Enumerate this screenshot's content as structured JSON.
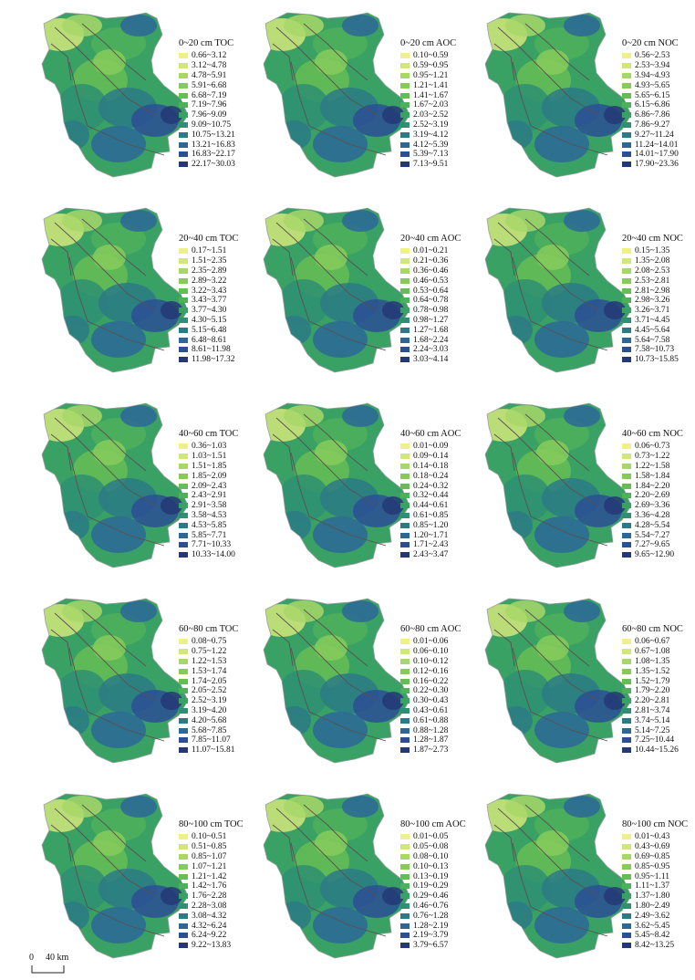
{
  "panels": [
    {
      "title": "0~20 cm TOC",
      "classes": [
        "0.66~3.12",
        "3.12~4.78",
        "4.78~5.91",
        "5.91~6.68",
        "6.68~7.19",
        "7.19~7.96",
        "7.96~9.09",
        "9.09~10.75",
        "10.75~13.21",
        "13.21~16.83",
        "16.83~22.17",
        "22.17~30.03"
      ]
    },
    {
      "title": "0~20 cm AOC",
      "classes": [
        "0.10~0.59",
        "0.59~0.95",
        "0.95~1.21",
        "1.21~1.41",
        "1.41~1.67",
        "1.67~2.03",
        "2.03~2.52",
        "2.52~3.19",
        "3.19~4.12",
        "4.12~5.39",
        "5.39~7.13",
        "7.13~9.51"
      ]
    },
    {
      "title": "0~20 cm NOC",
      "classes": [
        "0.56~2.53",
        "2.53~3.94",
        "3.94~4.93",
        "4.93~5.65",
        "5.65~6.15",
        "6.15~6.86",
        "6.86~7.86",
        "7.86~9.27",
        "9.27~11.24",
        "11.24~14.01",
        "14.01~17.90",
        "17.90~23.36"
      ]
    },
    {
      "title": "20~40 cm TOC",
      "classes": [
        "0.17~1.51",
        "1.51~2.35",
        "2.35~2.89",
        "2.89~3.22",
        "3.22~3.43",
        "3.43~3.77",
        "3.77~4.30",
        "4.30~5.15",
        "5.15~6.48",
        "6.48~8.61",
        "8.61~11.98",
        "11.98~17.32"
      ]
    },
    {
      "title": "20~40 cm AOC",
      "classes": [
        "0.01~0.21",
        "0.21~0.36",
        "0.36~0.46",
        "0.46~0.53",
        "0.53~0.64",
        "0.64~0.78",
        "0.78~0.98",
        "0.98~1.27",
        "1.27~1.68",
        "1.68~2.24",
        "2.24~3.03",
        "3.03~4.14"
      ]
    },
    {
      "title": "20~40 cm NOC",
      "classes": [
        "0.15~1.35",
        "1.35~2.08",
        "2.08~2.53",
        "2.53~2.81",
        "2.81~2.98",
        "2.98~3.26",
        "3.26~3.71",
        "3.71~4.45",
        "4.45~5.64",
        "5.64~7.58",
        "7.58~10.73",
        "10.73~15.85"
      ]
    },
    {
      "title": "40~60 cm TOC",
      "classes": [
        "0.36~1.03",
        "1.03~1.51",
        "1.51~1.85",
        "1.85~2.09",
        "2.09~2.43",
        "2.43~2.91",
        "2.91~3.58",
        "3.58~4.53",
        "4.53~5.85",
        "5.85~7.71",
        "7.71~10.33",
        "10.33~14.00"
      ]
    },
    {
      "title": "40~60 cm AOC",
      "classes": [
        "0.01~0.09",
        "0.09~0.14",
        "0.14~0.18",
        "0.18~0.24",
        "0.24~0.32",
        "0.32~0.44",
        "0.44~0.61",
        "0.61~0.85",
        "0.85~1.20",
        "1.20~1.71",
        "1.71~2.43",
        "2.43~3.47"
      ]
    },
    {
      "title": "40~60 cm NOC",
      "classes": [
        "0.06~0.73",
        "0.73~1.22",
        "1.22~1.58",
        "1.58~1.84",
        "1.84~2.20",
        "2.20~2.69",
        "2.69~3.36",
        "3.36~4.28",
        "4.28~5.54",
        "5.54~7.27",
        "7.27~9.65",
        "9.65~12.90"
      ]
    },
    {
      "title": "60~80 cm TOC",
      "classes": [
        "0.08~0.75",
        "0.75~1.22",
        "1.22~1.53",
        "1.53~1.74",
        "1.74~2.05",
        "2.05~2.52",
        "2.52~3.19",
        "3.19~4.20",
        "4.20~5.68",
        "5.68~7.85",
        "7.85~11.07",
        "11.07~15.81"
      ]
    },
    {
      "title": "60~80 cm AOC",
      "classes": [
        "0.01~0.06",
        "0.06~0.10",
        "0.10~0.12",
        "0.12~0.16",
        "0.16~0.22",
        "0.22~0.30",
        "0.30~0.43",
        "0.43~0.61",
        "0.61~0.88",
        "0.88~1.28",
        "1.28~1.87",
        "1.87~2.73"
      ]
    },
    {
      "title": "60~80 cm NOC",
      "classes": [
        "0.06~0.67",
        "0.67~1.08",
        "1.08~1.35",
        "1.35~1.52",
        "1.52~1.79",
        "1.79~2.20",
        "2.20~2.81",
        "2.81~3.74",
        "3.74~5.14",
        "5.14~7.25",
        "7.25~10.44",
        "10.44~15.26"
      ]
    },
    {
      "title": "80~100 cm TOC",
      "classes": [
        "0.10~0.51",
        "0.51~0.85",
        "0.85~1.07",
        "1.07~1.21",
        "1.21~1.42",
        "1.42~1.76",
        "1.76~2.28",
        "2.28~3.08",
        "3.08~4.32",
        "4.32~6.24",
        "6.24~9.22",
        "9.22~13.83"
      ]
    },
    {
      "title": "80~100 cm AOC",
      "classes": [
        "0.01~0.05",
        "0.05~0.08",
        "0.08~0.10",
        "0.10~0.13",
        "0.13~0.19",
        "0.19~0.29",
        "0.29~0.46",
        "0.46~0.76",
        "0.76~1.28",
        "1.28~2.19",
        "2.19~3.79",
        "3.79~6.57"
      ]
    },
    {
      "title": "80~100 cm NOC",
      "classes": [
        "0.01~0.43",
        "0.43~0.69",
        "0.69~0.85",
        "0.85~0.95",
        "0.95~1.11",
        "1.11~1.37",
        "1.37~1.80",
        "1.80~2.49",
        "2.49~3.62",
        "3.62~5.45",
        "5.45~8.42",
        "8.42~13.25"
      ]
    }
  ],
  "legend_colors": [
    "#eef08a",
    "#d2e77b",
    "#a7d768",
    "#86cb5a",
    "#67bd55",
    "#4eb05a",
    "#3aa165",
    "#2e8f72",
    "#2c7a85",
    "#2d6796",
    "#2c4f94",
    "#253876"
  ],
  "scale": {
    "zero": "0",
    "distance": "40 km"
  }
}
